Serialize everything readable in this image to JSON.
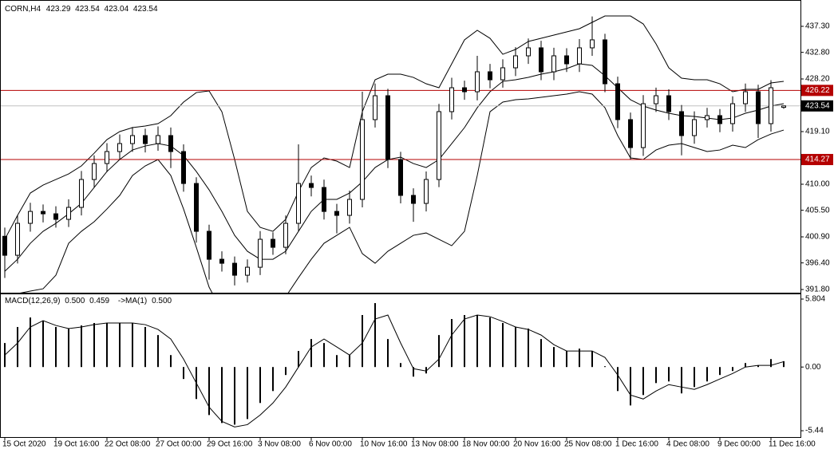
{
  "chart_data": [
    {
      "type": "candlestick",
      "title": "CORN,H4",
      "categories": [
        "15 Oct 2020",
        null,
        null,
        null,
        "19 Oct 16:00",
        null,
        null,
        null,
        "22 Oct 08:00",
        null,
        null,
        null,
        "27 Oct 00:00",
        null,
        null,
        null,
        "29 Oct 16:00",
        null,
        null,
        null,
        "3 Nov 08:00",
        null,
        null,
        null,
        "6 Nov 00:00",
        null,
        null,
        null,
        "10 Nov 16:00",
        null,
        null,
        null,
        "13 Nov 08:00",
        null,
        null,
        null,
        "18 Nov 00:00",
        null,
        null,
        null,
        "20 Nov 16:00",
        null,
        null,
        null,
        "25 Nov 08:00",
        null,
        null,
        null,
        "1 Dec 16:00",
        null,
        null,
        null,
        "4 Dec 08:00",
        null,
        null,
        null,
        "9 Dec 00:00",
        null,
        null,
        null,
        "11 Dec 16:00",
        null
      ],
      "open": [
        401.0,
        397.72,
        403.24,
        405.3,
        404.89,
        403.93,
        406.0,
        410.82,
        413.58,
        415.65,
        417.03,
        418.41,
        417.03,
        418.41,
        415.65,
        410.13,
        401.86,
        397.03,
        396.34,
        394.27,
        395.65,
        400.48,
        399.1,
        403.24,
        410.13,
        409.44,
        405.3,
        404.62,
        407.38,
        421.17,
        425.3,
        414.27,
        408.07,
        406.69,
        410.82,
        422.55,
        426.68,
        425.99,
        429.44,
        428.06,
        430.13,
        432.2,
        433.58,
        429.44,
        432.2,
        430.82,
        433.58,
        434.96,
        427.37,
        421.17,
        416.34,
        423.92,
        425.3,
        422.55,
        418.41,
        421.17,
        421.86,
        420.48,
        423.92,
        425.99,
        420.48,
        423.29
      ],
      "high": [
        402.5,
        404.7,
        406.8,
        406.5,
        406.2,
        407.4,
        412.3,
        415.0,
        417.1,
        418.6,
        419.9,
        419.6,
        420.0,
        419.8,
        416.9,
        411.2,
        403.0,
        398.4,
        397.5,
        397.0,
        401.9,
        401.7,
        404.6,
        416.9,
        411.5,
        410.8,
        406.6,
        408.9,
        426.0,
        427.4,
        426.5,
        415.6,
        409.3,
        412.2,
        423.9,
        428.4,
        427.9,
        432.2,
        430.8,
        431.6,
        433.7,
        435.2,
        434.8,
        433.6,
        433.5,
        435.1,
        439.0,
        436.0,
        428.6,
        422.4,
        425.4,
        426.7,
        426.4,
        423.7,
        422.6,
        423.2,
        423.0,
        425.2,
        427.4,
        427.2,
        428.0,
        423.54
      ],
      "low": [
        393.8,
        396.3,
        401.8,
        403.4,
        402.5,
        402.6,
        404.6,
        409.4,
        412.1,
        414.2,
        415.6,
        415.5,
        415.8,
        412.8,
        408.7,
        399.9,
        393.5,
        394.9,
        392.5,
        393.0,
        394.3,
        397.8,
        397.9,
        401.9,
        407.9,
        403.9,
        401.5,
        403.2,
        406.0,
        419.8,
        412.8,
        406.7,
        403.5,
        405.3,
        409.5,
        421.2,
        424.6,
        424.5,
        426.6,
        426.7,
        428.7,
        430.8,
        428.0,
        428.0,
        429.4,
        429.4,
        432.2,
        425.9,
        419.7,
        414.3,
        414.9,
        422.5,
        421.1,
        415.0,
        417.0,
        419.8,
        419.0,
        419.1,
        422.5,
        418.0,
        419.1,
        423.04
      ],
      "close": [
        397.72,
        403.24,
        405.3,
        404.89,
        403.93,
        406.0,
        410.82,
        413.58,
        415.65,
        417.03,
        418.41,
        417.03,
        418.41,
        415.65,
        410.13,
        401.86,
        397.03,
        396.34,
        394.27,
        395.65,
        400.48,
        399.1,
        403.24,
        410.13,
        409.44,
        405.3,
        404.62,
        407.38,
        421.17,
        425.3,
        414.27,
        408.07,
        406.69,
        410.82,
        422.55,
        426.68,
        425.99,
        429.44,
        428.06,
        430.13,
        432.2,
        433.58,
        429.44,
        432.2,
        430.82,
        433.58,
        434.96,
        427.37,
        421.17,
        416.34,
        423.92,
        425.3,
        422.55,
        418.41,
        421.17,
        421.86,
        420.48,
        423.92,
        425.99,
        420.48,
        426.68,
        423.54
      ],
      "bands": {
        "color": "#000000",
        "upper": [
          400.48,
          404.62,
          408.48,
          409.86,
          410.82,
          411.79,
          413.17,
          415.37,
          417.72,
          419.1,
          419.79,
          420.06,
          420.48,
          421.86,
          424.2,
          425.85,
          426.13,
          422.54,
          414.27,
          405.31,
          402.55,
          401.86,
          403.93,
          408.75,
          412.89,
          414.55,
          414.0,
          412.89,
          422.54,
          428.06,
          429.03,
          429.03,
          428.47,
          427.37,
          426.68,
          430.82,
          434.96,
          436.61,
          435.23,
          432.47,
          433.3,
          434.68,
          435.23,
          435.78,
          436.33,
          436.89,
          437.99,
          439.09,
          439.09,
          439.09,
          437.71,
          434.27,
          430.13,
          428.34,
          428.06,
          428.06,
          427.37,
          425.99,
          426.41,
          426.41,
          427.51,
          427.78
        ],
        "middle": [
          394.96,
          397.03,
          399.79,
          401.86,
          403.24,
          404.89,
          406.69,
          409.44,
          412.2,
          414.27,
          415.92,
          416.61,
          417.03,
          416.61,
          414.96,
          412.2,
          409.03,
          405.31,
          401.17,
          398.41,
          397.03,
          397.03,
          398.41,
          401.86,
          405.31,
          407.38,
          407.38,
          408.48,
          410.41,
          412.89,
          414.27,
          414.68,
          413.58,
          412.89,
          414.27,
          417.03,
          419.79,
          423.23,
          425.99,
          427.78,
          428.06,
          428.47,
          429.03,
          429.44,
          429.99,
          430.82,
          430.54,
          428.75,
          426.68,
          424.61,
          423.51,
          422.82,
          422.27,
          421.86,
          421.72,
          421.44,
          421.17,
          421.44,
          422.27,
          422.82,
          423.51,
          423.92
        ],
        "lower": [
          390.83,
          391.1,
          391.52,
          391.93,
          394.27,
          399.79,
          401.86,
          403.52,
          405.72,
          408.07,
          411.51,
          413.17,
          414.27,
          411.51,
          405.72,
          399.1,
          392.21,
          388.07,
          386.69,
          386.69,
          387.38,
          388.76,
          390.55,
          393.86,
          397.03,
          399.79,
          401.17,
          402.55,
          398.0,
          396.34,
          398.41,
          399.79,
          401.17,
          401.58,
          400.48,
          399.38,
          401.86,
          411.51,
          422.54,
          424.2,
          424.61,
          424.75,
          425.03,
          425.3,
          425.58,
          425.99,
          425.58,
          423.23,
          418.41,
          414.55,
          414.27,
          415.92,
          416.75,
          417.03,
          416.34,
          415.65,
          415.92,
          416.75,
          416.34,
          417.72,
          418.68,
          419.37
        ]
      },
      "hlines": [
        {
          "value": 426.22,
          "color": "#b40000"
        },
        {
          "value": 414.27,
          "color": "#b40000"
        }
      ],
      "price_line_color": "#c0c0c0",
      "ylim": [
        391.25,
        441.85
      ],
      "yticks": [
        {
          "value": 437.3,
          "label": "437.30"
        },
        {
          "value": 432.8,
          "label": "432.80"
        },
        {
          "value": 428.2,
          "label": "428.20"
        },
        {
          "value": 419.1,
          "label": "419.10"
        },
        {
          "value": 410,
          "label": "410.00"
        },
        {
          "value": 405.5,
          "label": "405.50"
        },
        {
          "value": 400.9,
          "label": "400.90"
        },
        {
          "value": 396.4,
          "label": "396.40"
        },
        {
          "value": 391.8,
          "label": "391.80"
        }
      ],
      "grid": false
    },
    {
      "type": "macd",
      "title": "MACD(12,26,9)",
      "header_values": [
        "0.500",
        "0.459"
      ],
      "signal_name": "->MA(1)",
      "signal_value": "0.500",
      "values": [
        2.05,
        3.42,
        4.23,
        3.96,
        3.42,
        3.28,
        3.55,
        3.76,
        3.76,
        3.76,
        3.76,
        3.42,
        2.73,
        1.02,
        -1.02,
        -2.73,
        -4.1,
        -4.78,
        -4.92,
        -4.44,
        -3.07,
        -2.05,
        -0.68,
        1.37,
        2.39,
        2.05,
        1.02,
        1.02,
        4.44,
        5.46,
        2.39,
        0.34,
        -0.82,
        -0.55,
        2.73,
        4.1,
        4.44,
        4.44,
        4.23,
        3.76,
        3.42,
        3.28,
        2.39,
        1.71,
        1.37,
        1.57,
        1.37,
        0.07,
        -2.05,
        -3.28,
        -2.39,
        -1.37,
        -1.23,
        -2.25,
        -1.71,
        -1.23,
        -0.68,
        -0.34,
        0.34,
        0.14,
        0.68,
        0.5
      ],
      "signal": [
        1.02,
        2.05,
        3.42,
        3.96,
        3.55,
        3.28,
        3.42,
        3.62,
        3.76,
        3.76,
        3.76,
        3.62,
        3.21,
        2.39,
        0.68,
        -1.37,
        -3.42,
        -4.64,
        -5.12,
        -4.92,
        -4.1,
        -3.07,
        -1.71,
        0,
        1.71,
        2.39,
        1.71,
        1.02,
        2.05,
        4.1,
        4.44,
        2.05,
        -0.14,
        -0.34,
        0.68,
        2.73,
        4.1,
        4.44,
        4.3,
        3.89,
        3.42,
        3.21,
        2.73,
        1.91,
        1.37,
        1.37,
        1.37,
        0.82,
        -0.68,
        -2.39,
        -2.73,
        -2.05,
        -1.5,
        -1.71,
        -1.91,
        -1.5,
        -1.02,
        -0.55,
        0,
        0.14,
        0.14,
        0.46
      ],
      "color": "#000000",
      "ylim": [
        -5.98,
        6.28
      ],
      "yticks": [
        5.804,
        {
          "value": 0,
          "label": "0.00"
        },
        -5.44
      ]
    }
  ]
}
